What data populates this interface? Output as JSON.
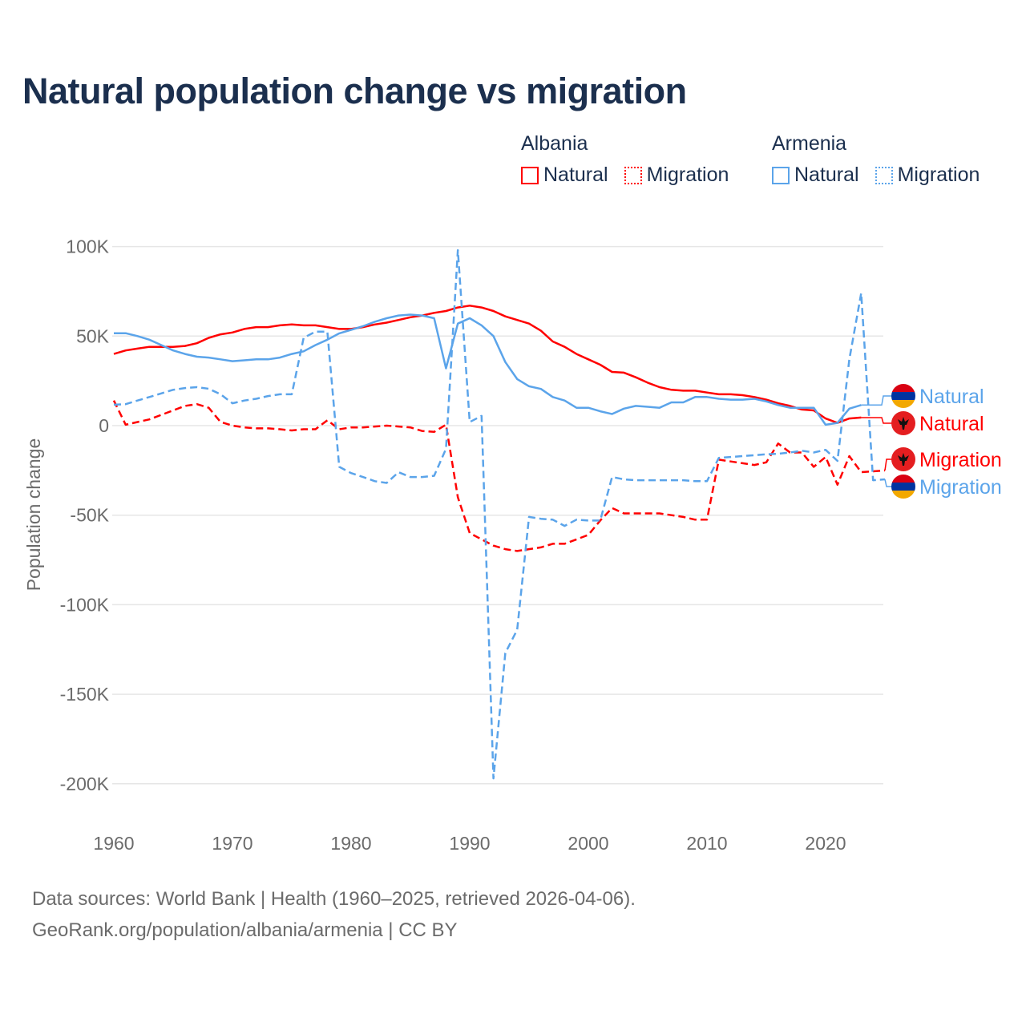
{
  "title": "Natural population change vs migration",
  "legend": {
    "groups": [
      {
        "country": "Albania",
        "items": [
          {
            "label": "Natural",
            "style": "solid"
          },
          {
            "label": "Migration",
            "style": "dotted"
          }
        ],
        "color": "#ff0000"
      },
      {
        "country": "Armenia",
        "items": [
          {
            "label": "Natural",
            "style": "solid"
          },
          {
            "label": "Migration",
            "style": "dotted"
          }
        ],
        "color": "#5ba4ea"
      }
    ]
  },
  "footer": {
    "line1": "Data sources: World Bank | Health (1960–2025, retrieved 2026-04-06).",
    "line2": "GeoRank.org/population/albania/armenia | CC BY"
  },
  "chart_data": {
    "type": "line",
    "title": "Natural population change vs migration",
    "xlabel": "",
    "ylabel": "Population change",
    "xlim": [
      1960,
      2025
    ],
    "ylim": [
      -200000,
      100000
    ],
    "x_ticks": [
      1960,
      1970,
      1980,
      1990,
      2000,
      2010,
      2020
    ],
    "x_tick_labels": [
      "1960",
      "1970",
      "1980",
      "1990",
      "2000",
      "2010",
      "2020"
    ],
    "y_ticks": [
      100000,
      50000,
      0,
      -50000,
      -100000,
      -150000,
      -200000
    ],
    "y_tick_labels": [
      "100K",
      "50K",
      "0",
      "-50K",
      "-100K",
      "-150K",
      "-200K"
    ],
    "grid": true,
    "legend_placement": "top-right",
    "start_year": 1960,
    "unit": "thousands",
    "series": [
      {
        "name": "Albania Natural",
        "end_label": "Natural",
        "flag": "albania-flag",
        "color": "#ff0000",
        "dash": "solid",
        "values": [
          40,
          42,
          43,
          44,
          44,
          44,
          44.5,
          46,
          49,
          51,
          52,
          54,
          55,
          55,
          56,
          56.5,
          56,
          56,
          55,
          54,
          54,
          55,
          56.5,
          57.5,
          59,
          60.5,
          61.5,
          63,
          64,
          66,
          67,
          66,
          64,
          61,
          59,
          57,
          53,
          47,
          44,
          40,
          37,
          34,
          30,
          29.6,
          27,
          24,
          21.5,
          20,
          19.5,
          19.5,
          18.5,
          17.5,
          17.5,
          17,
          16,
          14.5,
          12.5,
          11,
          9,
          8.5,
          4,
          1.5,
          4,
          4.5
        ]
      },
      {
        "name": "Armenia Natural",
        "end_label": "Natural",
        "flag": "armenia-flag",
        "color": "#5ba4ea",
        "dash": "solid",
        "values": [
          51.6,
          51.6,
          50,
          48,
          45,
          42,
          40,
          38.5,
          38,
          37,
          36,
          36.5,
          37,
          37,
          38,
          40,
          41.5,
          45,
          48,
          51.5,
          53.5,
          55.5,
          58,
          60,
          61.5,
          62,
          61.5,
          60,
          32,
          57,
          60,
          56,
          50,
          35.5,
          26,
          22,
          20.5,
          16,
          14,
          10,
          10,
          8,
          6.5,
          9.5,
          11,
          10.5,
          10,
          13,
          13,
          16,
          16,
          15,
          14.5,
          14.5,
          15,
          13.5,
          11.5,
          10,
          10,
          10,
          0.5,
          1.5,
          9.5,
          11.5
        ]
      },
      {
        "name": "Albania Migration",
        "end_label": "Migration",
        "flag": "albania-flag",
        "color": "#ff0000",
        "dash": "dashed",
        "values": [
          14,
          0.5,
          2,
          3.5,
          6,
          8.5,
          11,
          12,
          10,
          2,
          0,
          -1,
          -1.5,
          -1.5,
          -2,
          -2.7,
          -2,
          -2,
          3,
          -2,
          -1,
          -1,
          -0.5,
          0,
          -0.5,
          -1,
          -3,
          -3.5,
          0.5,
          -40,
          -60,
          -63.5,
          -67,
          -69,
          -70,
          -69,
          -68,
          -66,
          -66,
          -63.5,
          -61,
          -53,
          -46,
          -49,
          -49,
          -49,
          -49,
          -50,
          -51,
          -52.5,
          -52.5,
          -19,
          -20,
          -21,
          -22,
          -20.5,
          -10,
          -15,
          -15,
          -23,
          -17.5,
          -33,
          -17,
          -26,
          -25.5,
          -25
        ]
      },
      {
        "name": "Armenia Migration",
        "end_label": "Migration",
        "flag": "armenia-flag",
        "color": "#5ba4ea",
        "dash": "dashed",
        "values": [
          11.7,
          12,
          14,
          16,
          18,
          20,
          21,
          21.5,
          20.6,
          17.5,
          12.5,
          14,
          15,
          16.5,
          17.5,
          17.5,
          49,
          52.5,
          52.5,
          -23,
          -26.5,
          -28.7,
          -31,
          -32,
          -26,
          -28.7,
          -28.7,
          -28,
          -13,
          98,
          2,
          5.4,
          -197,
          -127,
          -114,
          -51,
          -52,
          -52.5,
          -56,
          -52.5,
          -53,
          -53,
          -28.7,
          -30,
          -30.5,
          -30.5,
          -30.5,
          -30.5,
          -30.5,
          -31,
          -31,
          -18,
          -17.5,
          -17,
          -16.5,
          -16,
          -15.7,
          -15,
          -14,
          -15,
          -13.5,
          -19.7,
          37,
          74,
          -30.5,
          -30
        ]
      }
    ]
  }
}
